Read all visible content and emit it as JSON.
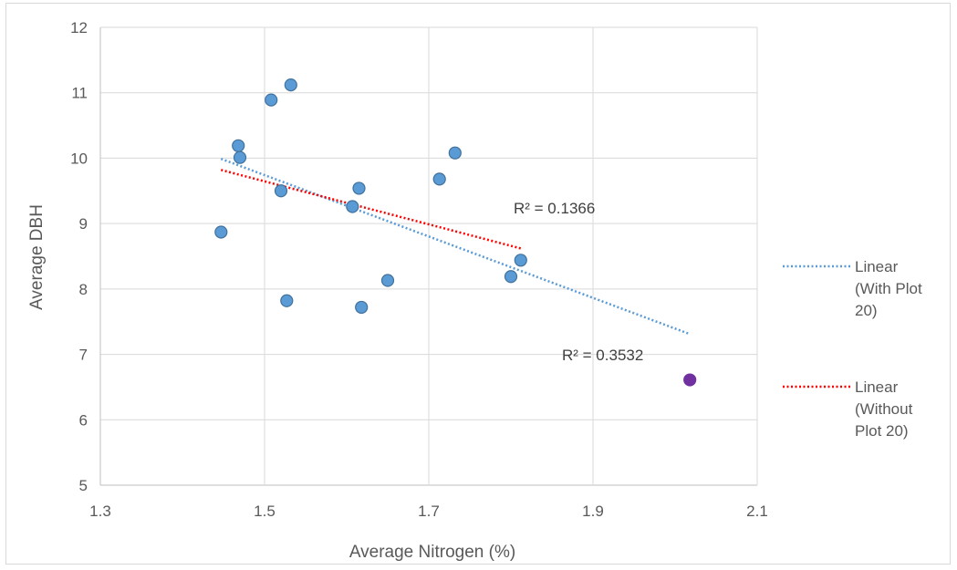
{
  "chart_data": {
    "type": "scatter",
    "title": "",
    "xlabel": "Average Nitrogen (%)",
    "ylabel": "Average DBH",
    "xlim": [
      1.3,
      2.1
    ],
    "ylim": [
      5,
      12
    ],
    "x_ticks": [
      "1.3",
      "1.5",
      "1.7",
      "1.9",
      "2.1"
    ],
    "y_ticks": [
      "5",
      "6",
      "7",
      "8",
      "9",
      "10",
      "11",
      "12"
    ],
    "grid": "vertical and horizontal major gridlines",
    "series": [
      {
        "color": "#5b9bd5",
        "points": [
          [
            1.447,
            8.87
          ],
          [
            1.468,
            10.19
          ],
          [
            1.47,
            10.01
          ],
          [
            1.508,
            10.89
          ],
          [
            1.52,
            9.5
          ],
          [
            1.527,
            7.82
          ],
          [
            1.532,
            11.12
          ],
          [
            1.607,
            9.26
          ],
          [
            1.615,
            9.54
          ],
          [
            1.618,
            7.72
          ],
          [
            1.65,
            8.13
          ],
          [
            1.713,
            9.68
          ],
          [
            1.732,
            10.08
          ],
          [
            1.8,
            8.19
          ],
          [
            1.812,
            8.44
          ]
        ]
      },
      {
        "color": "#7030a0",
        "points": [
          [
            2.018,
            6.61
          ]
        ]
      }
    ],
    "trendlines": [
      {
        "name": "Linear (With Plot 20)",
        "color": "#5b9bd5",
        "style": "dotted",
        "x": [
          1.447,
          2.018
        ],
        "y": [
          9.99,
          7.31
        ],
        "r2_label": "R² = 0.3532"
      },
      {
        "name": "Linear (Without Plot 20)",
        "color": "#ff0000",
        "style": "dotted",
        "x": [
          1.447,
          1.812
        ],
        "y": [
          9.82,
          8.62
        ],
        "r2_label": "R² = 0.1366"
      }
    ],
    "legend": {
      "position": "right",
      "entries": [
        {
          "lines": [
            "Linear",
            "(With Plot",
            "20)"
          ],
          "color": "#5b9bd5"
        },
        {
          "lines": [
            "Linear",
            "(Without",
            "Plot 20)"
          ],
          "color": "#ff0000"
        }
      ]
    }
  }
}
